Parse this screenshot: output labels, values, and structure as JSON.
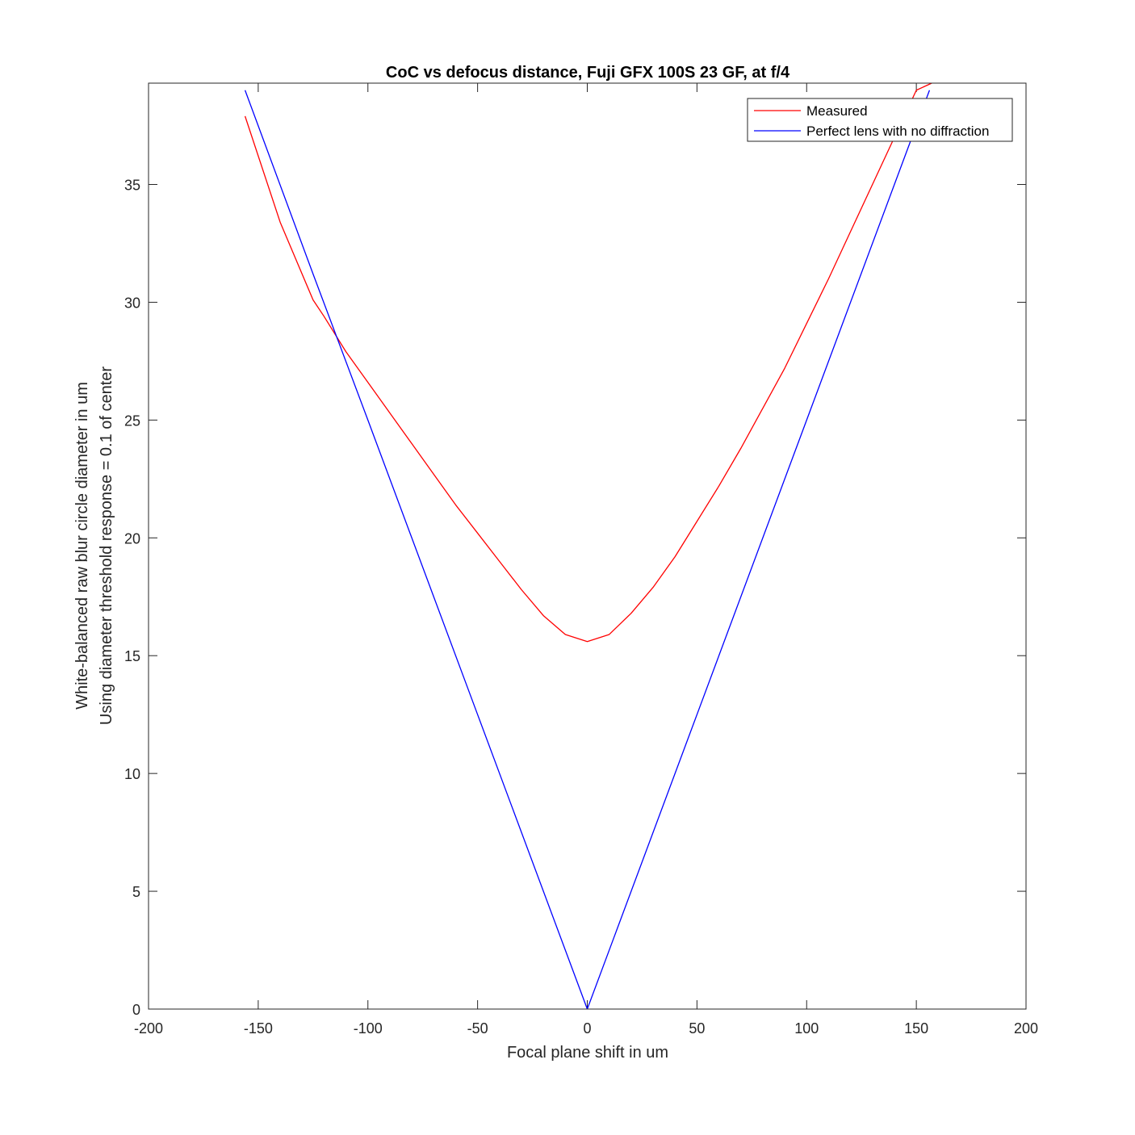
{
  "chart_data": {
    "type": "line",
    "title": "CoC vs defocus distance, Fuji GFX 100S 23  GF, at f/4",
    "xlabel": "Focal plane shift in um",
    "ylabel": [
      "White-balanced raw blur circle diameter in um",
      "Using diameter threshold response = 0.1 of center"
    ],
    "xlim": [
      -200,
      200
    ],
    "ylim": [
      0,
      39.3
    ],
    "xticks": [
      -200,
      -150,
      -100,
      -50,
      0,
      50,
      100,
      150,
      200
    ],
    "yticks": [
      0,
      5,
      10,
      15,
      20,
      25,
      30,
      35
    ],
    "grid": false,
    "legend_position": "top-right",
    "series": [
      {
        "name": "Measured",
        "color": "#ff0000",
        "x": [
          -156,
          -140,
          -125,
          -120,
          -110,
          -100,
          -90,
          -80,
          -70,
          -60,
          -50,
          -40,
          -30,
          -20,
          -10,
          0,
          10,
          20,
          30,
          40,
          50,
          60,
          70,
          80,
          90,
          100,
          110,
          120,
          130,
          140,
          150,
          157
        ],
        "y": [
          37.9,
          33.4,
          30.1,
          29.4,
          27.9,
          26.6,
          25.3,
          24.0,
          22.7,
          21.4,
          20.2,
          19.0,
          17.8,
          16.7,
          15.9,
          15.6,
          15.9,
          16.8,
          17.9,
          19.2,
          20.7,
          22.2,
          23.8,
          25.5,
          27.2,
          29.1,
          31.0,
          33.0,
          35.0,
          37.0,
          39.0,
          39.3
        ]
      },
      {
        "name": "Perfect lens with no diffraction",
        "color": "#0000ff",
        "x": [
          -156,
          -125,
          -100,
          -50,
          0,
          50,
          100,
          150,
          156
        ],
        "y": [
          39.0,
          31.2,
          25.0,
          12.5,
          0,
          12.5,
          25.0,
          37.5,
          39.0
        ]
      }
    ]
  }
}
